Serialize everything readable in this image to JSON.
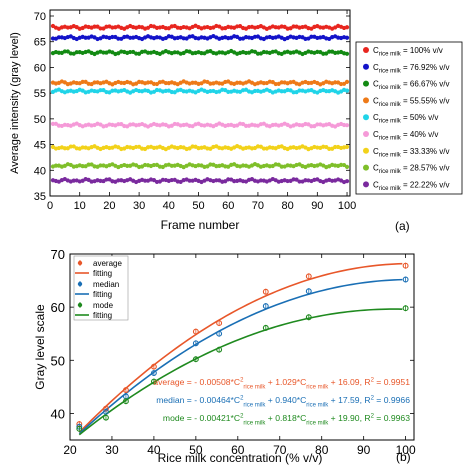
{
  "chart_data": [
    {
      "type": "scatter",
      "panel_label": "(a)",
      "xlabel": "Frame number",
      "ylabel": "Average intensity (gray level)",
      "xlim": [
        0,
        101
      ],
      "ylim": [
        35,
        47.5
      ],
      "xticks": [
        0,
        10,
        20,
        30,
        40,
        50,
        60,
        70,
        80,
        90,
        100
      ],
      "yticks": [
        35,
        40,
        45,
        50,
        55,
        60,
        65,
        70
      ],
      "ytick_scale": "ticks 35..70 in steps of 5 evenly spaced; plotted as a compressed gray-level scale",
      "grid": false,
      "legend_position": "right",
      "series": [
        {
          "name_main": "C",
          "name_sub": "rice milk",
          "name_tail": " = 100% v/v",
          "color": "#e8261f",
          "y": 67.8
        },
        {
          "name_main": "C",
          "name_sub": "rice milk",
          "name_tail": " = 76.92% v/v",
          "color": "#1313c9",
          "y": 65.8
        },
        {
          "name_main": "C",
          "name_sub": "rice milk",
          "name_tail": " = 66.67% v/v",
          "color": "#138a13",
          "y": 62.9
        },
        {
          "name_main": "C",
          "name_sub": "rice milk",
          "name_tail": " = 55.55% v/v",
          "color": "#ee7a18",
          "y": 57.0
        },
        {
          "name_main": "C",
          "name_sub": "rice milk",
          "name_tail": " = 50% v/v",
          "color": "#20d4e8",
          "y": 55.4
        },
        {
          "name_main": "C",
          "name_sub": "rice milk",
          "name_tail": " = 40% v/v",
          "color": "#f59ad8",
          "y": 48.8
        },
        {
          "name_main": "C",
          "name_sub": "rice milk",
          "name_tail": " = 33.33% v/v",
          "color": "#f2d21a",
          "y": 44.4
        },
        {
          "name_main": "C",
          "name_sub": "rice milk",
          "name_tail": " = 28.57% v/v",
          "color": "#7fbf2a",
          "y": 40.9
        },
        {
          "name_main": "C",
          "name_sub": "rice milk",
          "name_tail": " = 22.22% v/v",
          "color": "#7a2a9e",
          "y": 38.0
        }
      ]
    },
    {
      "type": "scatter",
      "panel_label": "(b)",
      "xlabel": "Rice milk concentration (% v/v)",
      "ylabel": "Gray level scale",
      "xlim": [
        20,
        102
      ],
      "ylim": [
        35,
        70
      ],
      "xticks": [
        20,
        30,
        40,
        50,
        60,
        70,
        80,
        90,
        100
      ],
      "yticks": [
        40,
        50,
        60,
        70
      ],
      "grid": false,
      "legend_position": "top-left",
      "x": [
        22.22,
        28.57,
        33.33,
        40,
        50,
        55.55,
        66.67,
        76.92,
        100
      ],
      "series": [
        {
          "name": "average",
          "color": "#e8572a",
          "marker": "circle",
          "values": [
            38.0,
            40.9,
            44.4,
            48.8,
            55.4,
            57.0,
            62.9,
            65.8,
            67.8
          ],
          "fit": {
            "name": "fitting",
            "a": -0.00508,
            "b": 1.029,
            "c": 16.09
          }
        },
        {
          "name": "median",
          "color": "#1a6fb5",
          "marker": "circle",
          "values": [
            37.5,
            40.3,
            43.2,
            47.6,
            53.2,
            55.0,
            60.2,
            63.0,
            65.2
          ],
          "fit": {
            "name": "fitting",
            "a": -0.00464,
            "b": 0.94,
            "c": 17.59
          }
        },
        {
          "name": "mode",
          "color": "#1f8a1f",
          "marker": "circle",
          "values": [
            37.1,
            39.2,
            42.3,
            46.0,
            50.2,
            52.0,
            56.1,
            58.1,
            59.8
          ],
          "fit": {
            "name": "fitting",
            "a": -0.00421,
            "b": 0.818,
            "c": 19.9
          }
        }
      ],
      "equations": [
        {
          "lead": "average = - 0.00508*C",
          "sup": "2",
          "sub1": "rice milk",
          "mid": " + 1.029*C",
          "sub2": "rice milk",
          "tail": " + 16.09, R",
          "tail_sup": "2",
          "end": " = 0.9951",
          "color": "#e8572a"
        },
        {
          "lead": "median = - 0.00464*C",
          "sup": "2",
          "sub1": "rice milk",
          "mid": " + 0.940*C",
          "sub2": "rice milk",
          "tail": " + 17.59, R",
          "tail_sup": "2",
          "end": " = 0.9966",
          "color": "#1a6fb5"
        },
        {
          "lead": "mode = - 0.00421*C",
          "sup": "2",
          "sub1": "rice milk",
          "mid": " + 0.818*C",
          "sub2": "rice milk",
          "tail": " + 19.90, R",
          "tail_sup": "2",
          "end": " = 0.9963",
          "color": "#1f8a1f"
        }
      ]
    }
  ]
}
